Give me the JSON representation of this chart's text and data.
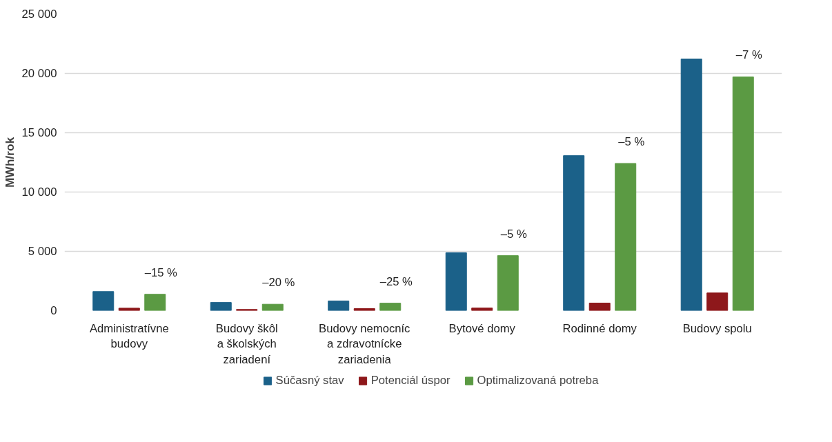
{
  "chart_data": {
    "type": "bar",
    "ylabel": "MWh/rok",
    "categories": [
      "Administratívne\nbudovy",
      "Budovy škôl\na školských\nzariadení",
      "Budovy nemocníc\na zdravotnícke\nzariadenia",
      "Bytové domy",
      "Rodinné domy",
      "Budovy spolu"
    ],
    "series": [
      {
        "name": "Súčasný stav",
        "color": "#1b6189",
        "values": [
          1610,
          690,
          820,
          4880,
          13070,
          21220
        ]
      },
      {
        "name": "Potenciál úspor",
        "color": "#8e181b",
        "values": [
          210,
          100,
          170,
          220,
          640,
          1490
        ]
      },
      {
        "name": "Optimalizovaná potreba",
        "color": "#5b9a43",
        "values": [
          1380,
          540,
          630,
          4640,
          12410,
          19710
        ]
      }
    ],
    "ylim": [
      0,
      25000
    ],
    "yticks": [
      0,
      {
        "value": 5000,
        "label": "5 000"
      },
      {
        "value": 10000,
        "label": "10 000"
      },
      {
        "value": 15000,
        "label": "15 000"
      },
      {
        "value": 20000,
        "label": "20 000"
      },
      {
        "value": 25000,
        "label": "25 000"
      }
    ],
    "grid": "y",
    "legend": "bottom",
    "annotations": [
      "–15 %",
      "–20 %",
      "–25 %",
      "–5 %",
      "–5 %",
      "–7 %"
    ]
  }
}
